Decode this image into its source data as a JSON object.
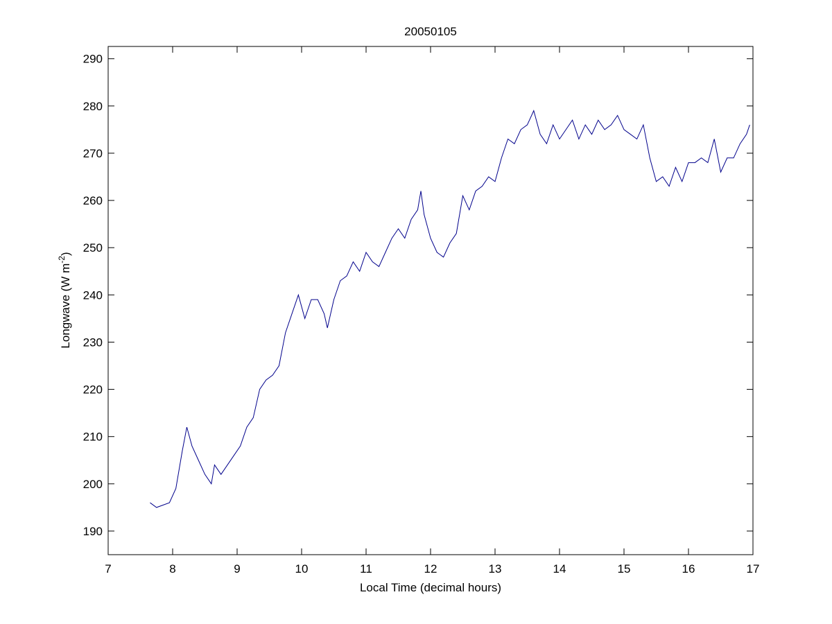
{
  "chart_data": {
    "type": "line",
    "title": "20050105",
    "x_label": "Local Time (decimal hours)",
    "y_label_parts": [
      "Longwave (W m",
      "-2",
      ")"
    ],
    "xlim": [
      7,
      17
    ],
    "xticks": [
      7,
      8,
      9,
      10,
      11,
      12,
      13,
      14,
      15,
      16,
      17
    ],
    "ylim": [
      185,
      292.6
    ],
    "yticks": [
      190,
      200,
      210,
      220,
      230,
      240,
      250,
      260,
      270,
      280,
      290
    ],
    "x": [
      7.65,
      7.75,
      7.85,
      7.95,
      8.05,
      8.15,
      8.22,
      8.3,
      8.4,
      8.5,
      8.6,
      8.65,
      8.75,
      8.85,
      8.95,
      9.05,
      9.15,
      9.25,
      9.35,
      9.45,
      9.55,
      9.65,
      9.75,
      9.85,
      9.95,
      10.05,
      10.15,
      10.25,
      10.35,
      10.4,
      10.5,
      10.6,
      10.7,
      10.8,
      10.9,
      11.0,
      11.1,
      11.2,
      11.3,
      11.4,
      11.5,
      11.6,
      11.7,
      11.8,
      11.85,
      11.9,
      12.0,
      12.1,
      12.2,
      12.3,
      12.4,
      12.5,
      12.6,
      12.7,
      12.8,
      12.9,
      13.0,
      13.1,
      13.2,
      13.3,
      13.4,
      13.5,
      13.6,
      13.7,
      13.8,
      13.9,
      14.0,
      14.1,
      14.2,
      14.3,
      14.4,
      14.5,
      14.6,
      14.7,
      14.8,
      14.9,
      15.0,
      15.1,
      15.2,
      15.3,
      15.4,
      15.5,
      15.6,
      15.7,
      15.8,
      15.9,
      16.0,
      16.1,
      16.2,
      16.3,
      16.4,
      16.5,
      16.6,
      16.7,
      16.8,
      16.9,
      16.95
    ],
    "series": [
      {
        "color": "#00008b",
        "values": [
          196,
          195,
          195.5,
          196,
          199,
          207,
          212,
          208,
          205,
          202,
          200,
          204,
          202,
          204,
          206,
          208,
          212,
          214,
          220,
          222,
          223,
          225,
          232,
          236,
          240,
          235,
          239,
          239,
          236,
          233,
          239,
          243,
          244,
          247,
          245,
          249,
          247,
          246,
          249,
          252,
          254,
          252,
          256,
          258,
          262,
          257,
          252,
          249,
          248,
          251,
          253,
          261,
          258,
          262,
          263,
          265,
          264,
          269,
          273,
          272,
          275,
          276,
          279,
          274,
          272,
          276,
          273,
          275,
          277,
          273,
          276,
          274,
          277,
          275,
          276,
          278,
          275,
          274,
          273,
          276,
          269,
          264,
          265,
          263,
          267,
          264,
          268,
          268,
          269,
          268,
          273,
          266,
          269,
          269,
          272,
          274,
          276
        ]
      }
    ]
  }
}
